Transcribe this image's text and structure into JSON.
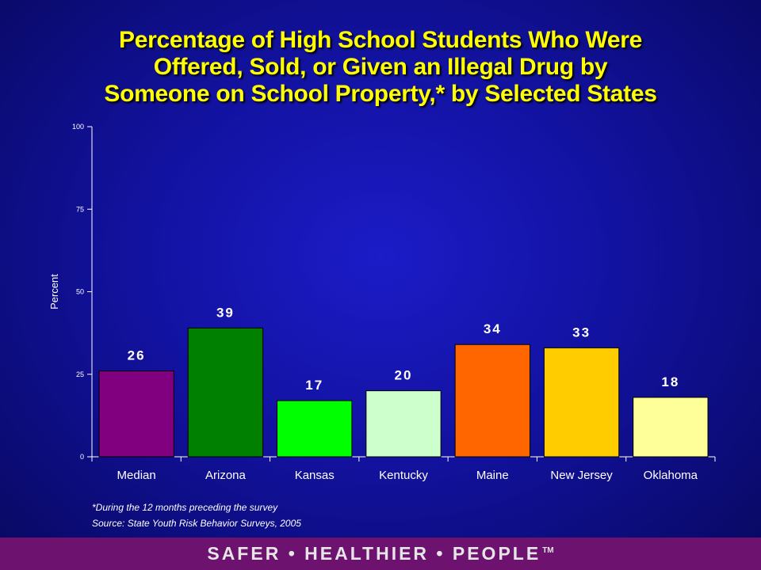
{
  "title_lines": [
    "Percentage of High School Students Who Were",
    "Offered, Sold, or Given an Illegal Drug by",
    "Someone on School Property,* by Selected States"
  ],
  "chart_data": {
    "type": "bar",
    "categories": [
      "Median",
      "Arizona",
      "Kansas",
      "Kentucky",
      "Maine",
      "New Jersey",
      "Oklahoma"
    ],
    "values": [
      26,
      39,
      17,
      20,
      34,
      33,
      18
    ],
    "data_labels": [
      "26",
      "39",
      "17",
      "20",
      "34",
      "33",
      "18"
    ],
    "bar_colors": [
      "#800080",
      "#008000",
      "#00ff00",
      "#ccffcc",
      "#ff6600",
      "#ffcc00",
      "#ffff99"
    ],
    "title": "Percentage of High School Students Who Were Offered, Sold, or Given an Illegal Drug by Someone on School Property,* by Selected States",
    "xlabel": "",
    "ylabel": "Percent",
    "ylim": [
      0,
      100
    ],
    "yticks": [
      0,
      25,
      50,
      75,
      100
    ],
    "grid": false,
    "legend": "none"
  },
  "notes": {
    "footnote": "*During the 12 months preceding the survey",
    "source": "Source: State Youth Risk Behavior Surveys, 2005"
  },
  "footer": {
    "slogan": "SAFER • HEALTHIER • PEOPLE",
    "trademark": "TM"
  },
  "colors": {
    "background": "#1212a0",
    "title": "#ffff00",
    "footer_band": "#6e1270"
  }
}
